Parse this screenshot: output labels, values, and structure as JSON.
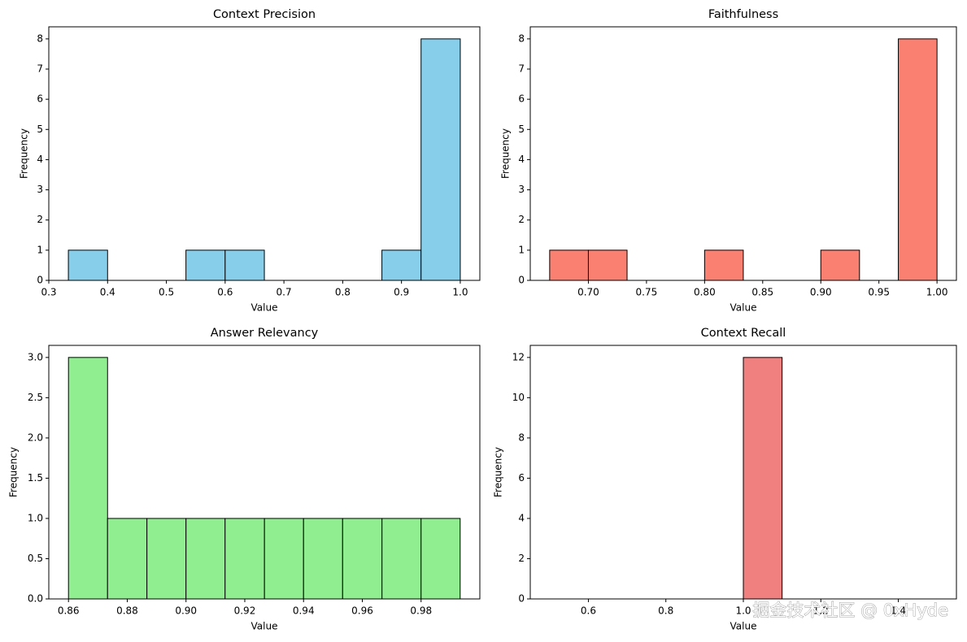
{
  "chart_data": [
    {
      "type": "histogram",
      "title": "Context Precision",
      "xlabel": "Value",
      "ylabel": "Frequency",
      "color": "#87ceeb",
      "edgecolor": "#000000",
      "bins": [
        0.3333,
        0.4,
        0.4667,
        0.5333,
        0.6,
        0.6667,
        0.7333,
        0.8,
        0.8667,
        0.9333,
        1.0
      ],
      "values": [
        1,
        0,
        0,
        1,
        1,
        0,
        0,
        0,
        1,
        8
      ],
      "xlim": [
        0.3,
        1.0333
      ],
      "xticks": [
        0.3,
        0.4,
        0.5,
        0.6,
        0.7,
        0.8,
        0.9,
        {
          "value": 1.0,
          "label": "1.0"
        }
      ],
      "ylim": [
        0,
        8.4
      ],
      "yticks": [
        0,
        1,
        2,
        3,
        4,
        5,
        6,
        7,
        8
      ]
    },
    {
      "type": "histogram",
      "title": "Faithfulness",
      "xlabel": "Value",
      "ylabel": "Frequency",
      "color": "#fa8072",
      "edgecolor": "#000000",
      "bins": [
        0.6667,
        0.7,
        0.7333,
        0.7667,
        0.8,
        0.8333,
        0.8667,
        0.9,
        0.9333,
        0.9667,
        1.0
      ],
      "values": [
        1,
        1,
        0,
        0,
        1,
        0,
        0,
        1,
        0,
        8
      ],
      "xlim": [
        0.65,
        1.0167
      ],
      "xticks": [
        {
          "value": 0.7,
          "label": "0.70"
        },
        0.75,
        {
          "value": 0.8,
          "label": "0.80"
        },
        0.85,
        {
          "value": 0.9,
          "label": "0.90"
        },
        0.95,
        {
          "value": 1.0,
          "label": "1.00"
        }
      ],
      "ylim": [
        0,
        8.4
      ],
      "yticks": [
        0,
        1,
        2,
        3,
        4,
        5,
        6,
        7,
        8
      ]
    },
    {
      "type": "histogram",
      "title": "Answer Relevancy",
      "xlabel": "Value",
      "ylabel": "Frequency",
      "color": "#90ee90",
      "edgecolor": "#000000",
      "bins": [
        0.86,
        0.8733,
        0.8867,
        0.9,
        0.9133,
        0.9267,
        0.94,
        0.9533,
        0.9667,
        0.98,
        0.9933
      ],
      "values": [
        3,
        1,
        1,
        1,
        1,
        1,
        1,
        1,
        1,
        1
      ],
      "xlim": [
        0.8533,
        1.0
      ],
      "xticks": [
        0.86,
        0.88,
        {
          "value": 0.9,
          "label": "0.90"
        },
        0.92,
        0.94,
        0.96,
        0.98
      ],
      "ylim": [
        0,
        3.15
      ],
      "yticks": [
        {
          "value": 0,
          "label": "0.0"
        },
        0.5,
        {
          "value": 1,
          "label": "1.0"
        },
        1.5,
        {
          "value": 2,
          "label": "2.0"
        },
        2.5,
        {
          "value": 3,
          "label": "3.0"
        }
      ]
    },
    {
      "type": "histogram",
      "title": "Context Recall",
      "xlabel": "Value",
      "ylabel": "Frequency",
      "color": "#f08080",
      "edgecolor": "#000000",
      "bins": [
        0.5,
        0.6,
        0.7,
        0.8,
        0.9,
        1.0,
        1.1,
        1.2,
        1.3,
        1.4,
        1.5
      ],
      "values": [
        0,
        0,
        0,
        0,
        0,
        12,
        0,
        0,
        0,
        0
      ],
      "xlim": [
        0.45,
        1.55
      ],
      "xticks": [
        0.6,
        0.8,
        {
          "value": 1.0,
          "label": "1.0"
        },
        1.2,
        1.4
      ],
      "ylim": [
        0,
        12.6
      ],
      "yticks": [
        0,
        2,
        4,
        6,
        8,
        10,
        12
      ]
    }
  ],
  "watermark": "掘金技术社区 @ 0xHyde"
}
